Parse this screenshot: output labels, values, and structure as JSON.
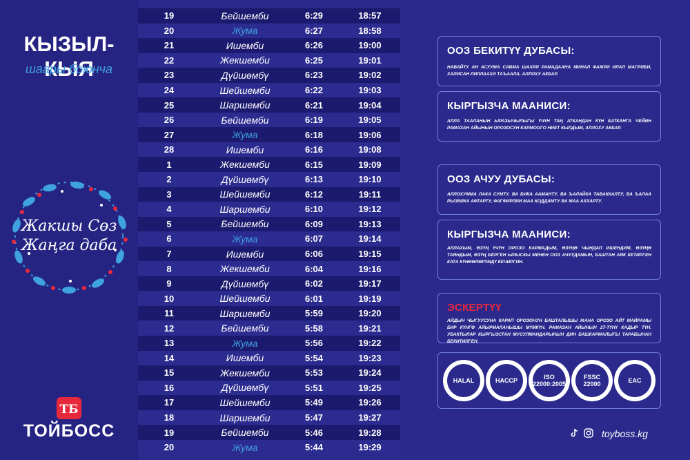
{
  "header": {
    "city": "КЫЗЫЛ-КЫЯ",
    "subtitle": "шаары боюнча"
  },
  "wreath": {
    "line1": "Жакшы Сөз",
    "line2": "Жаңга даба"
  },
  "brand": {
    "logo_text": "ТБ",
    "name": "ТОЙБОСС"
  },
  "colors": {
    "background": "#2b2a8c",
    "row_dark": "#1c1a6e",
    "friday": "#3ea3e0",
    "warning": "#e8283c"
  },
  "schedule": [
    {
      "day": "19",
      "weekday": "Бейшемби",
      "start": "6:29",
      "end": "18:57",
      "friday": false
    },
    {
      "day": "20",
      "weekday": "Жума",
      "start": "6:27",
      "end": "18:58",
      "friday": true
    },
    {
      "day": "21",
      "weekday": "Ишемби",
      "start": "6:26",
      "end": "19:00",
      "friday": false
    },
    {
      "day": "22",
      "weekday": "Жекшемби",
      "start": "6:25",
      "end": "19:01",
      "friday": false
    },
    {
      "day": "23",
      "weekday": "Дүйшөмбү",
      "start": "6:23",
      "end": "19:02",
      "friday": false
    },
    {
      "day": "24",
      "weekday": "Шейшемби",
      "start": "6:22",
      "end": "19:03",
      "friday": false
    },
    {
      "day": "25",
      "weekday": "Шаршемби",
      "start": "6:21",
      "end": "19:04",
      "friday": false
    },
    {
      "day": "26",
      "weekday": "Бейшемби",
      "start": "6:19",
      "end": "19:05",
      "friday": false
    },
    {
      "day": "27",
      "weekday": "Жума",
      "start": "6:18",
      "end": "19:06",
      "friday": true
    },
    {
      "day": "28",
      "weekday": "Ишемби",
      "start": "6:16",
      "end": "19:08",
      "friday": false
    },
    {
      "day": "1",
      "weekday": "Жекшемби",
      "start": "6:15",
      "end": "19:09",
      "friday": false
    },
    {
      "day": "2",
      "weekday": "Дүйшөмбү",
      "start": "6:13",
      "end": "19:10",
      "friday": false
    },
    {
      "day": "3",
      "weekday": "Шейшемби",
      "start": "6:12",
      "end": "19:11",
      "friday": false
    },
    {
      "day": "4",
      "weekday": "Шаршемби",
      "start": "6:10",
      "end": "19:12",
      "friday": false
    },
    {
      "day": "5",
      "weekday": "Бейшемби",
      "start": "6:09",
      "end": "19:13",
      "friday": false
    },
    {
      "day": "6",
      "weekday": "Жума",
      "start": "6:07",
      "end": "19:14",
      "friday": true
    },
    {
      "day": "7",
      "weekday": "Ишемби",
      "start": "6:06",
      "end": "19:15",
      "friday": false
    },
    {
      "day": "8",
      "weekday": "Жекшемби",
      "start": "6:04",
      "end": "19:16",
      "friday": false
    },
    {
      "day": "9",
      "weekday": "Дүйшөмбү",
      "start": "6:02",
      "end": "19:17",
      "friday": false
    },
    {
      "day": "10",
      "weekday": "Шейшемби",
      "start": "6:01",
      "end": "19:19",
      "friday": false
    },
    {
      "day": "11",
      "weekday": "Шаршемби",
      "start": "5:59",
      "end": "19:20",
      "friday": false
    },
    {
      "day": "12",
      "weekday": "Бейшемби",
      "start": "5:58",
      "end": "19:21",
      "friday": false
    },
    {
      "day": "13",
      "weekday": "Жума",
      "start": "5:56",
      "end": "19:22",
      "friday": true
    },
    {
      "day": "14",
      "weekday": "Ишемби",
      "start": "5:54",
      "end": "19:23",
      "friday": false
    },
    {
      "day": "15",
      "weekday": "Жекшемби",
      "start": "5:53",
      "end": "19:24",
      "friday": false
    },
    {
      "day": "16",
      "weekday": "Дүйшөмбү",
      "start": "5:51",
      "end": "19:25",
      "friday": false
    },
    {
      "day": "17",
      "weekday": "Шейшемби",
      "start": "5:49",
      "end": "19:26",
      "friday": false
    },
    {
      "day": "18",
      "weekday": "Шаршемби",
      "start": "5:47",
      "end": "19:27",
      "friday": false
    },
    {
      "day": "19",
      "weekday": "Бейшемби",
      "start": "5:46",
      "end": "19:28",
      "friday": false
    },
    {
      "day": "20",
      "weekday": "Жума",
      "start": "5:44",
      "end": "19:29",
      "friday": true
    }
  ],
  "panels": {
    "suhoor": {
      "title": "ООЗ БЕКИТҮҮ ДУБАСЫ:",
      "text": "НАВАЙТУ АН АСУУМА САВМА ШАХРИ РАМАДААНА МИНАЛ ФАЖРИ ИЛАЛ МАГРИБИ, ХАЛИСАН ЛИЛЛААХИ ТАЪААЛА, АЛЛОХУ АКБАР."
    },
    "suhoor_meaning": {
      "title": "КЫРГЫЗЧА МААНИСИ:",
      "text": "АЛЛА ТААЛАНЫН ЫРАЗЫЧЫЛЫГЫ ҮЧҮН ТАҢ АТКАНДАН КҮН БАТКАНГА ЧЕЙИН РАМАЗАН АЙЫНЫН ОРОЗОСУН КАРМООГО НИЕТ КЫЛДЫМ, АЛЛОХУ АКБАР."
    },
    "iftar": {
      "title": "ООЗ  АЧУУ ДУБАСЫ:",
      "text": "АЛЛОХУММА ЛАКА СУМТУ, ВА БИКА ААМАНТУ, ВА ЪАЛАЙКА ТАВАККАЛТУ, ВА ЪАЛАА РЫЗКИКА АФТАРТУ, ФАГФИРЛИИ МАА КОДДАМТУ ВА МАА АХХАРТУ."
    },
    "iftar_meaning": {
      "title": "КЫРГЫЗЧА МААНИСИ:",
      "text": "АЛЛАХЫМ, ӨЗҮҢ ҮЧҮН ОРОЗО КАРМАДЫМ, ӨЗҮҢӨ ЧЫНДАП ИШЕНДИМ, ӨЗҮҢӨ ТАЯНДЫМ, ӨЗҮҢ БЕРГЕН ЫРЫСКЫ МЕНЕН ООЗ АЧУУДАМЫН, БАШТАН АЯК КЕТИРГЕН КАТА КҮНӨӨЛӨРҮМДҮ КЕЧИРГИН."
    },
    "note": {
      "title": "ЭСКЕРТҮҮ",
      "text": "АЙДЫН ЧЫГУУСУНА КАРАП ОРОЗОНУН БАШТАЛЫШЫ ЖАНА ОРОЗО АЙТ МАЙРАМЫ БИР КҮНГӨ АЙЫРМАЛАНЫШЫ МҮМКҮН. РАМАЗАН АЙЫНЫН 27-ТҮНҮ КАДЫР ТҮН. УБАКТЫЛАР КЫРГЫЗСТАН МУСУЛМАНДАРЫНЫН ДИН БАШКАРМАЛЫГЫ ТАРАБЫНАН БЕКИТИЛГЕН."
    }
  },
  "certifications": [
    "HALAL",
    "HACCP",
    "ISO 22000:2005",
    "FSSC 22000",
    "EAC"
  ],
  "footer": {
    "icons": [
      "tiktok-icon",
      "instagram-icon"
    ],
    "site": "toyboss.kg"
  }
}
